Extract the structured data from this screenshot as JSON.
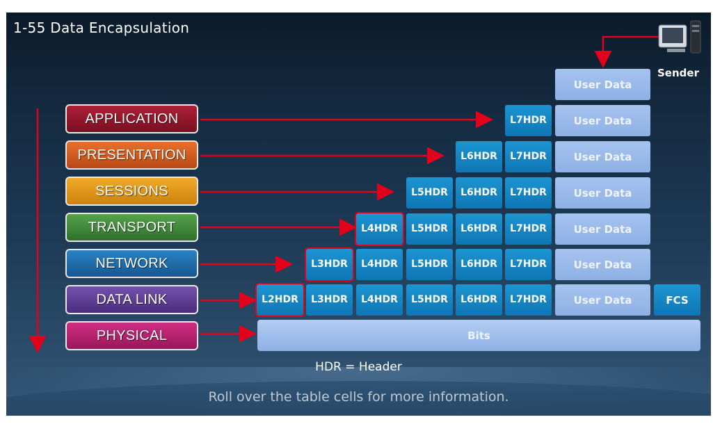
{
  "title": "1-55  Data Encapsulation",
  "sender_label": "Sender",
  "layers": [
    {
      "name": "APPLICATION",
      "color": "#8e1428"
    },
    {
      "name": "PRESENTATION",
      "color": "#d2581c"
    },
    {
      "name": "SESSIONS",
      "color": "#e39512"
    },
    {
      "name": "TRANSPORT",
      "color": "#3f8a3a"
    },
    {
      "name": "NETWORK",
      "color": "#1b6aa8"
    },
    {
      "name": "DATA LINK",
      "color": "#5b3a94"
    },
    {
      "name": "PHYSICAL",
      "color": "#b51e6b"
    }
  ],
  "headers": {
    "L2": [
      "L2",
      "HDR"
    ],
    "L3": [
      "L3",
      "HDR"
    ],
    "L4": [
      "L4",
      "HDR"
    ],
    "L5": [
      "L5",
      "HDR"
    ],
    "L6": [
      "L6",
      "HDR"
    ],
    "L7": [
      "L7",
      "HDR"
    ]
  },
  "user_data_label": "User Data",
  "fcs_label": "FCS",
  "bits_label": "Bits",
  "legend": "HDR = Header",
  "hint": "Roll over the table cells for more information.",
  "colors": {
    "arrow": "#e3001b",
    "highlight": "#e3001b",
    "header_cell": "#1683c4",
    "data_cell": "#9ab9ea"
  }
}
